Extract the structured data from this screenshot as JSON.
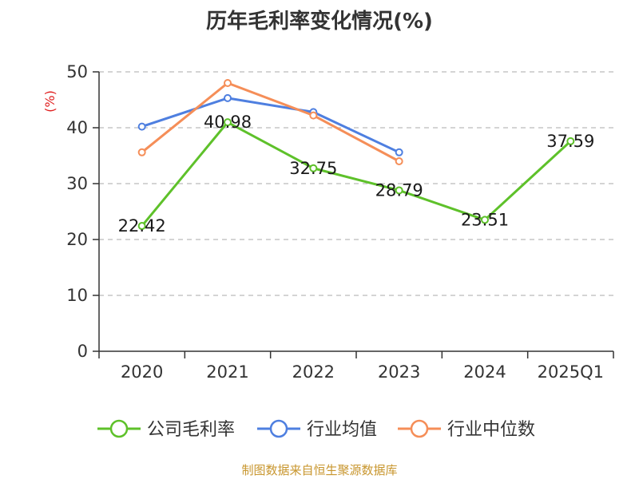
{
  "chart_data": {
    "type": "line",
    "title": "历年毛利率变化情况(%)",
    "ylabel": "(%)",
    "xlabel": "",
    "categories": [
      "2020",
      "2021",
      "2022",
      "2023",
      "2024",
      "2025Q1"
    ],
    "ylim": [
      0,
      50
    ],
    "yticks": [
      0,
      10,
      20,
      30,
      40,
      50
    ],
    "grid": true,
    "legend_position": "bottom",
    "series": [
      {
        "name": "公司毛利率",
        "color": "#5ec12a",
        "values": [
          22.42,
          40.98,
          32.75,
          28.79,
          23.51,
          37.59
        ],
        "labels": [
          "22.42",
          "40.98",
          "32.75",
          "28.79",
          "23.51",
          "37.59"
        ]
      },
      {
        "name": "行业均值",
        "color": "#4e7fe0",
        "values": [
          40.2,
          45.3,
          42.8,
          35.6,
          null,
          null
        ]
      },
      {
        "name": "行业中位数",
        "color": "#f58e58",
        "values": [
          35.6,
          48.0,
          42.2,
          34.0,
          null,
          null
        ]
      }
    ]
  },
  "source_note": "制图数据来自恒生聚源数据库"
}
